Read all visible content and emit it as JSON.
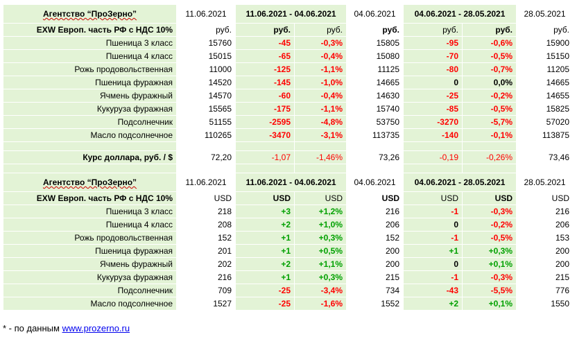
{
  "block1": {
    "agency": "Агентство “ПроЗерно”",
    "date1": "11.06.2021",
    "range1": "11.06.2021 - 04.06.2021",
    "date2": "04.06.2021",
    "range2": "04.06.2021 - 28.05.2021",
    "date3": "28.05.2021",
    "basis": "EXW Европ. часть РФ с НДС 10%",
    "unit": "руб.",
    "rows": [
      {
        "name": "Пшеница 3 класс",
        "v1": "15760",
        "d1": "-45",
        "p1": "-0,3%",
        "v2": "15805",
        "d2": "-95",
        "p2": "-0,6%",
        "v3": "15900"
      },
      {
        "name": "Пшеница 4 класс",
        "v1": "15015",
        "d1": "-65",
        "p1": "-0,4%",
        "v2": "15080",
        "d2": "-70",
        "p2": "-0,5%",
        "v3": "15150"
      },
      {
        "name": "Рожь продовольственная",
        "v1": "11000",
        "d1": "-125",
        "p1": "-1,1%",
        "v2": "11125",
        "d2": "-80",
        "p2": "-0,7%",
        "v3": "11205"
      },
      {
        "name": "Пшеница фуражная",
        "v1": "14520",
        "d1": "-145",
        "p1": "-1,0%",
        "v2": "14665",
        "d2": "0",
        "p2": "0,0%",
        "v3": "14665"
      },
      {
        "name": "Ячмень фуражный",
        "v1": "14570",
        "d1": "-60",
        "p1": "-0,4%",
        "v2": "14630",
        "d2": "-25",
        "p2": "-0,2%",
        "v3": "14655"
      },
      {
        "name": "Кукуруза фуражная",
        "v1": "15565",
        "d1": "-175",
        "p1": "-1,1%",
        "v2": "15740",
        "d2": "-85",
        "p2": "-0,5%",
        "v3": "15825"
      },
      {
        "name": "Подсолнечник",
        "v1": "51155",
        "d1": "-2595",
        "p1": "-4,8%",
        "v2": "53750",
        "d2": "-3270",
        "p2": "-5,7%",
        "v3": "57020"
      },
      {
        "name": "Масло подсолнечное",
        "v1": "110265",
        "d1": "-3470",
        "p1": "-3,1%",
        "v2": "113735",
        "d2": "-140",
        "p2": "-0,1%",
        "v3": "113875"
      }
    ],
    "usd": {
      "name": "Курс доллара, руб. / $",
      "v1": "72,20",
      "d1": "-1,07",
      "p1": "-1,46%",
      "v2": "73,26",
      "d2": "-0,19",
      "p2": "-0,26%",
      "v3": "73,46"
    }
  },
  "block2": {
    "agency": "Агентство “ПроЗерно”",
    "date1": "11.06.2021",
    "range1": "11.06.2021 - 04.06.2021",
    "date2": "04.06.2021",
    "range2": "04.06.2021 - 28.05.2021",
    "date3": "28.05.2021",
    "basis": "EXW Европ. часть РФ с НДС 10%",
    "unit": "USD",
    "rows": [
      {
        "name": "Пшеница 3 класс",
        "v1": "218",
        "d1": "+3",
        "p1": "+1,2%",
        "v2": "216",
        "d2": "-1",
        "p2": "-0,3%",
        "v3": "216"
      },
      {
        "name": "Пшеница 4 класс",
        "v1": "208",
        "d1": "+2",
        "p1": "+1,0%",
        "v2": "206",
        "d2": "0",
        "p2": "-0,2%",
        "v3": "206"
      },
      {
        "name": "Рожь продовольственная",
        "v1": "152",
        "d1": "+1",
        "p1": "+0,3%",
        "v2": "152",
        "d2": "-1",
        "p2": "-0,5%",
        "v3": "153"
      },
      {
        "name": "Пшеница фуражная",
        "v1": "201",
        "d1": "+1",
        "p1": "+0,5%",
        "v2": "200",
        "d2": "+1",
        "p2": "+0,3%",
        "v3": "200"
      },
      {
        "name": "Ячмень фуражный",
        "v1": "202",
        "d1": "+2",
        "p1": "+1,1%",
        "v2": "200",
        "d2": "0",
        "p2": "+0,1%",
        "v3": "200"
      },
      {
        "name": "Кукуруза фуражная",
        "v1": "216",
        "d1": "+1",
        "p1": "+0,3%",
        "v2": "215",
        "d2": "-1",
        "p2": "-0,3%",
        "v3": "215"
      },
      {
        "name": "Подсолнечник",
        "v1": "709",
        "d1": "-25",
        "p1": "-3,4%",
        "v2": "734",
        "d2": "-43",
        "p2": "-5,5%",
        "v3": "776"
      },
      {
        "name": "Масло подсолнечное",
        "v1": "1527",
        "d1": "-25",
        "p1": "-1,6%",
        "v2": "1552",
        "d2": "+2",
        "p2": "+0,1%",
        "v3": "1550"
      }
    ]
  },
  "footnote": {
    "prefix": "* - по данным ",
    "link": "www.prozerno.ru"
  },
  "colors": {
    "cell_bg": "#e3f3d6",
    "negative": "#ff0000",
    "positive": "#00a000",
    "neutral": "#000000",
    "link": "#0000ee"
  }
}
